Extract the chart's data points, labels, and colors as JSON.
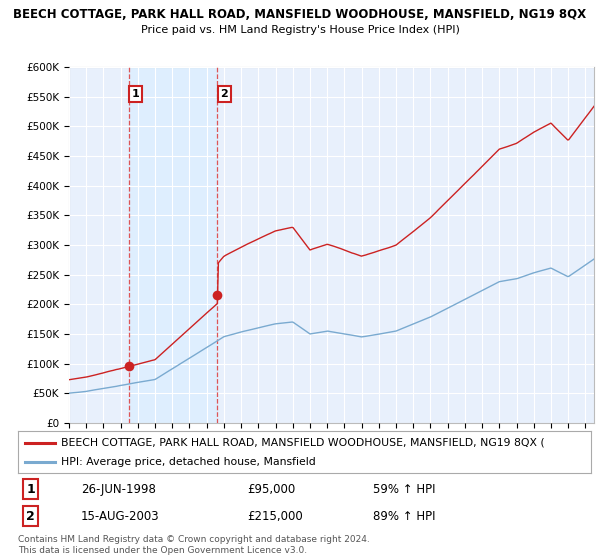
{
  "title": "BEECH COTTAGE, PARK HALL ROAD, MANSFIELD WOODHOUSE, MANSFIELD, NG19 8QX",
  "subtitle": "Price paid vs. HM Land Registry's House Price Index (HPI)",
  "ylim": [
    0,
    600000
  ],
  "yticks": [
    0,
    50000,
    100000,
    150000,
    200000,
    250000,
    300000,
    350000,
    400000,
    450000,
    500000,
    550000,
    600000
  ],
  "ytick_labels": [
    "£0",
    "£50K",
    "£100K",
    "£150K",
    "£200K",
    "£250K",
    "£300K",
    "£350K",
    "£400K",
    "£450K",
    "£500K",
    "£550K",
    "£600K"
  ],
  "sale1_year": 1998.48,
  "sale1_price": 95000,
  "sale2_year": 2003.62,
  "sale2_price": 215000,
  "line_color_red": "#cc2222",
  "line_color_blue": "#7aaad0",
  "shade_color": "#ddeeff",
  "background_color": "#e8f0fc",
  "grid_color": "#ffffff",
  "vline_color": "#dd4444",
  "legend_label_red": "BEECH COTTAGE, PARK HALL ROAD, MANSFIELD WOODHOUSE, MANSFIELD, NG19 8QX (",
  "legend_label_blue": "HPI: Average price, detached house, Mansfield",
  "footer": "Contains HM Land Registry data © Crown copyright and database right 2024.\nThis data is licensed under the Open Government Licence v3.0.",
  "table_row1": [
    "1",
    "26-JUN-1998",
    "£95,000",
    "59% ↑ HPI"
  ],
  "table_row2": [
    "2",
    "15-AUG-2003",
    "£215,000",
    "89% ↑ HPI"
  ],
  "xstart": 1995,
  "xend": 2025.5
}
